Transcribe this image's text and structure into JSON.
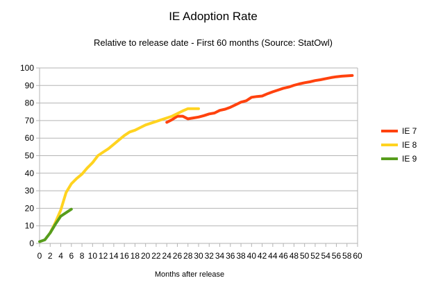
{
  "chart_data": {
    "type": "line",
    "title": "IE Adoption Rate",
    "subtitle": "Relative to release date - First 60 months (Source: StatOwl)",
    "xlabel": "Months after release",
    "ylabel": "",
    "xlim": [
      0,
      60
    ],
    "ylim": [
      0,
      100
    ],
    "x_ticks": [
      0,
      2,
      4,
      6,
      8,
      10,
      12,
      14,
      16,
      18,
      20,
      22,
      24,
      26,
      28,
      30,
      32,
      34,
      36,
      38,
      40,
      42,
      44,
      46,
      48,
      50,
      52,
      54,
      56,
      58,
      60
    ],
    "y_ticks": [
      0,
      10,
      20,
      30,
      40,
      50,
      60,
      70,
      80,
      90,
      100
    ],
    "grid": "horizontal",
    "legend_position": "right",
    "series": [
      {
        "name": "IE 7",
        "color": "#ff420e",
        "x": [
          24,
          25,
          26,
          27,
          28,
          29,
          30,
          31,
          32,
          33,
          34,
          35,
          36,
          37,
          38,
          39,
          40,
          41,
          42,
          43,
          44,
          45,
          46,
          47,
          48,
          49,
          50,
          51,
          52,
          53,
          54,
          55,
          56,
          57,
          58,
          59
        ],
        "y": [
          69,
          70.5,
          72.5,
          72.5,
          71,
          71.5,
          72,
          72.8,
          73.8,
          74.3,
          75.8,
          76.5,
          77.6,
          79,
          80.5,
          81.3,
          83.3,
          83.7,
          84,
          85.3,
          86.4,
          87.4,
          88.4,
          89.1,
          90.1,
          90.9,
          91.6,
          92.1,
          92.8,
          93.3,
          93.9,
          94.5,
          95,
          95.3,
          95.5,
          95.7
        ]
      },
      {
        "name": "IE 8",
        "color": "#ffd320",
        "x": [
          2,
          3,
          4,
          5,
          6,
          7,
          8,
          9,
          10,
          11,
          12,
          13,
          14,
          15,
          16,
          17,
          18,
          19,
          20,
          21,
          22,
          23,
          24,
          25,
          26,
          27,
          28,
          29,
          30
        ],
        "y": [
          6,
          12,
          19,
          29,
          34,
          37,
          39.5,
          43,
          46,
          50,
          52,
          54,
          56.5,
          59,
          61.5,
          63.5,
          64.5,
          66,
          67.5,
          68.5,
          69.5,
          70.5,
          71.5,
          72.5,
          74,
          75.5,
          76.8,
          76.8,
          76.8
        ]
      },
      {
        "name": "IE 9",
        "color": "#579d1c",
        "x": [
          0,
          1,
          2,
          3,
          4,
          5,
          6
        ],
        "y": [
          1,
          2,
          6,
          11,
          15.5,
          17.5,
          19.5
        ]
      }
    ]
  }
}
